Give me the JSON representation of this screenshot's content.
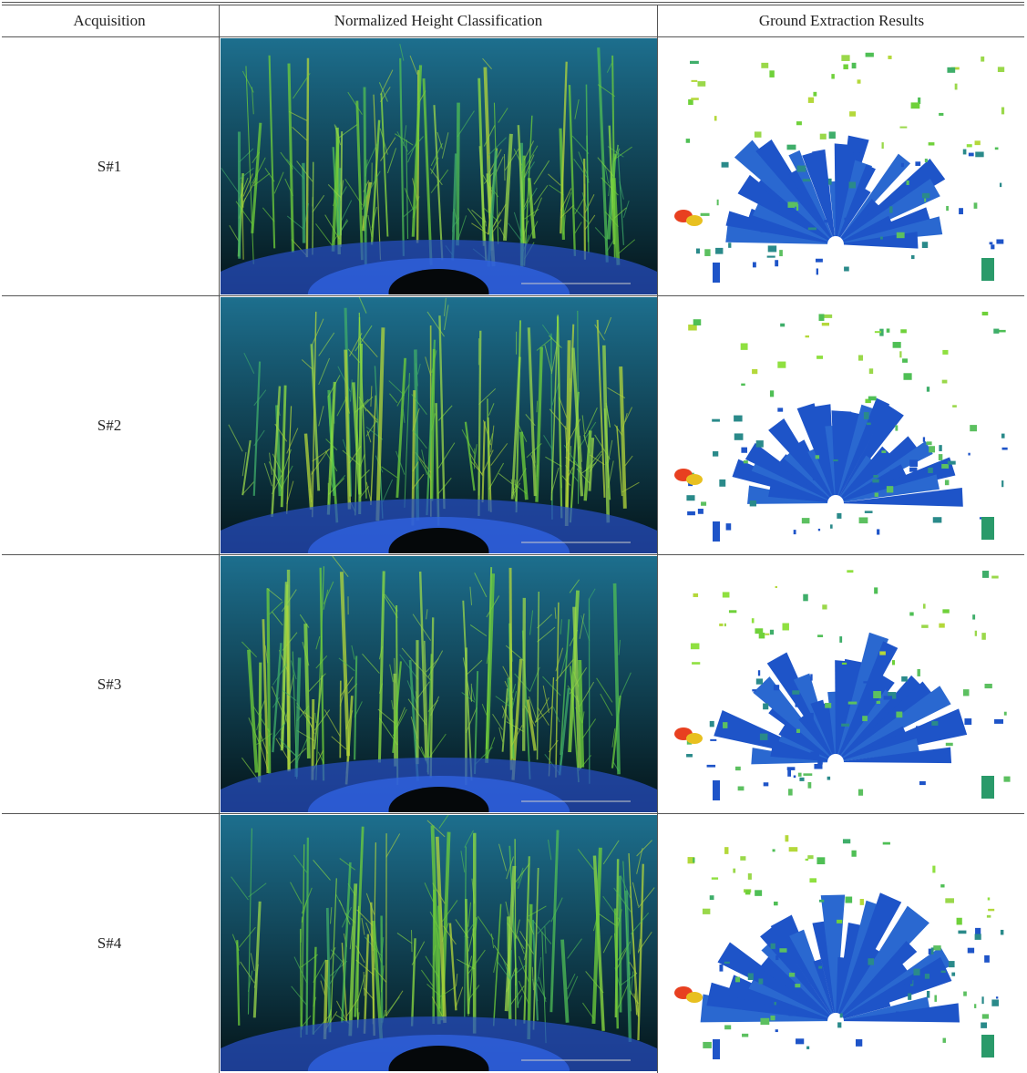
{
  "table": {
    "header": [
      "Acquisition",
      "Normalized Height Classification",
      "Ground Extraction Results"
    ],
    "rows": [
      [
        "S#1"
      ],
      [
        "S#2"
      ],
      [
        "S#3"
      ],
      [
        "S#4"
      ]
    ]
  }
}
